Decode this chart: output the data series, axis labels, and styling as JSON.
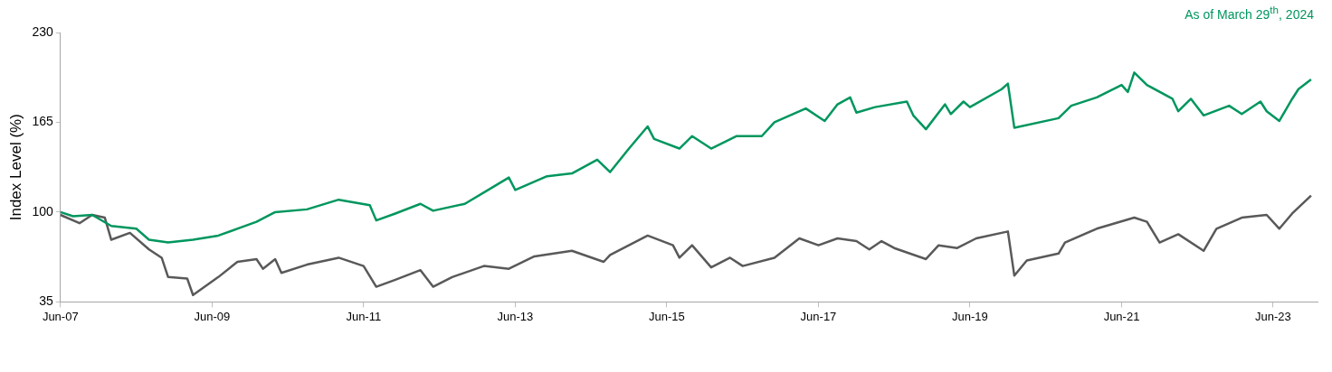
{
  "chart_data": {
    "type": "line",
    "ylabel": "Index Level (%)",
    "annotations": [
      "As of March 29$^{th}$, 2024"
    ],
    "xlim": [
      "2007-06",
      "2024-01"
    ],
    "xticks": [
      {
        "value": "2007-06",
        "label": "Jun-07"
      },
      {
        "value": "2009-06",
        "label": "Jun-09"
      },
      {
        "value": "2011-06",
        "label": "Jun-11"
      },
      {
        "value": "2013-06",
        "label": "Jun-13"
      },
      {
        "value": "2015-06",
        "label": "Jun-15"
      },
      {
        "value": "2017-06",
        "label": "Jun-17"
      },
      {
        "value": "2019-06",
        "label": "Jun-19"
      },
      {
        "value": "2021-06",
        "label": "Jun-21"
      },
      {
        "value": "2023-06",
        "label": "Jun-23"
      }
    ],
    "ylim": [
      35,
      230
    ],
    "yticks": [
      35,
      100,
      165,
      230
    ],
    "grid": false,
    "legend": false,
    "marker": "none",
    "line_style": "solid",
    "series": [
      {
        "color": "#00965e",
        "x": [
          "2007-06",
          "2007-08",
          "2007-11",
          "2008-02",
          "2008-06",
          "2008-08",
          "2008-11",
          "2009-03",
          "2009-07",
          "2010-01",
          "2010-04",
          "2010-09",
          "2011-02",
          "2011-07",
          "2011-08",
          "2011-11",
          "2012-03",
          "2012-05",
          "2012-10",
          "2013-02",
          "2013-05",
          "2013-06",
          "2013-11",
          "2014-03",
          "2014-07",
          "2014-09",
          "2014-12",
          "2015-03",
          "2015-04",
          "2015-08",
          "2015-10",
          "2016-01",
          "2016-05",
          "2016-09",
          "2016-11",
          "2017-04",
          "2017-07",
          "2017-09",
          "2017-11",
          "2017-12",
          "2018-03",
          "2018-08",
          "2018-09",
          "2018-11",
          "2019-02",
          "2019-03",
          "2019-05",
          "2019-06",
          "2019-11",
          "2019-12",
          "2020-01",
          "2020-08",
          "2020-10",
          "2021-02",
          "2021-06",
          "2021-07",
          "2021-08",
          "2021-10",
          "2022-02",
          "2022-03",
          "2022-05",
          "2022-07",
          "2022-11",
          "2023-01",
          "2023-04",
          "2023-05",
          "2023-07",
          "2023-09",
          "2023-10",
          "2023-12"
        ],
        "values": [
          100,
          97,
          98,
          90,
          88,
          80,
          78,
          80,
          83,
          93,
          100,
          102,
          109,
          105,
          94,
          99,
          106,
          101,
          106,
          117,
          125,
          116,
          126,
          128,
          138,
          129,
          146,
          162,
          153,
          146,
          155,
          146,
          155,
          155,
          165,
          175,
          166,
          178,
          183,
          172,
          176,
          180,
          170,
          160,
          178,
          171,
          180,
          176,
          189,
          193,
          161,
          168,
          177,
          183,
          192,
          187,
          201,
          192,
          182,
          173,
          182,
          170,
          177,
          171,
          180,
          173,
          166,
          182,
          189,
          196
        ]
      },
      {
        "color": "#595959",
        "x": [
          "2007-06",
          "2007-09",
          "2007-11",
          "2008-01",
          "2008-02",
          "2008-05",
          "2008-08",
          "2008-10",
          "2008-11",
          "2009-02",
          "2009-03",
          "2009-07",
          "2009-10",
          "2010-01",
          "2010-02",
          "2010-04",
          "2010-05",
          "2010-09",
          "2011-02",
          "2011-06",
          "2011-08",
          "2011-11",
          "2012-03",
          "2012-05",
          "2012-08",
          "2013-01",
          "2013-05",
          "2013-09",
          "2014-03",
          "2014-08",
          "2014-09",
          "2015-03",
          "2015-07",
          "2015-08",
          "2015-10",
          "2016-01",
          "2016-04",
          "2016-06",
          "2016-11",
          "2017-03",
          "2017-06",
          "2017-09",
          "2017-12",
          "2018-02",
          "2018-04",
          "2018-06",
          "2018-11",
          "2019-01",
          "2019-04",
          "2019-07",
          "2019-12",
          "2020-01",
          "2020-03",
          "2020-08",
          "2020-09",
          "2021-02",
          "2021-08",
          "2021-10",
          "2021-12",
          "2022-03",
          "2022-07",
          "2022-09",
          "2023-01",
          "2023-05",
          "2023-07",
          "2023-09",
          "2023-12"
        ],
        "values": [
          98,
          92,
          98,
          96,
          80,
          85,
          73,
          67,
          53,
          52,
          40,
          53,
          64,
          66,
          59,
          66,
          56,
          62,
          67,
          61,
          46,
          51,
          58,
          46,
          53,
          61,
          59,
          68,
          72,
          64,
          69,
          83,
          76,
          67,
          76,
          60,
          67,
          61,
          67,
          81,
          76,
          81,
          79,
          73,
          79,
          74,
          66,
          76,
          74,
          81,
          86,
          54,
          65,
          70,
          78,
          88,
          96,
          93,
          78,
          84,
          72,
          88,
          96,
          98,
          88,
          99,
          112
        ]
      }
    ]
  }
}
